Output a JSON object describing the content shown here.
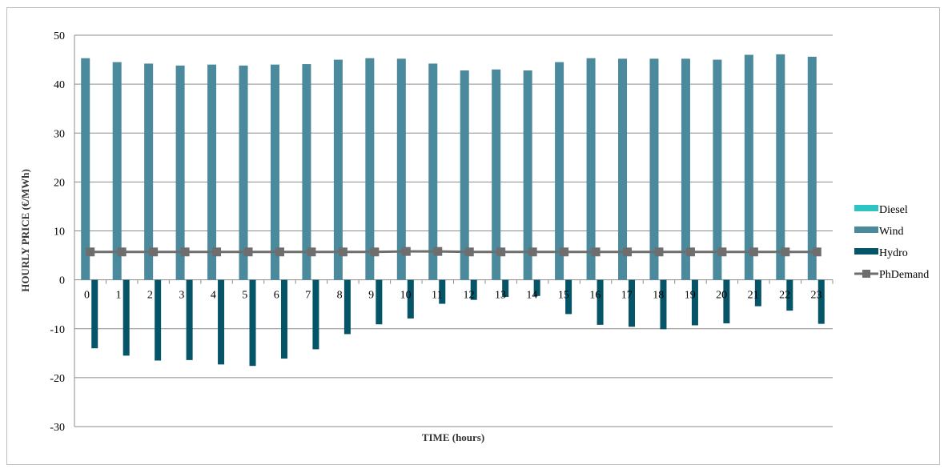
{
  "chart_data": {
    "type": "bar",
    "xlabel": "TIME (hours)",
    "ylabel": "HOURLY PRICE (€/MWh)",
    "ylim": [
      -30,
      50
    ],
    "yticks": [
      50,
      40,
      30,
      20,
      10,
      0,
      -10,
      -20,
      -30
    ],
    "grid": true,
    "legend_position": "right",
    "categories": [
      "0",
      "1",
      "2",
      "3",
      "4",
      "5",
      "6",
      "7",
      "8",
      "9",
      "10",
      "11",
      "12",
      "13",
      "14",
      "15",
      "16",
      "17",
      "18",
      "19",
      "20",
      "21",
      "22",
      "23"
    ],
    "series": [
      {
        "name": "Diesel",
        "kind": "bar",
        "color": "#2ec4c4",
        "values": [
          0,
          0,
          0,
          0,
          0,
          0,
          0,
          0,
          0,
          0,
          0,
          0,
          0,
          0,
          0,
          0,
          0,
          0,
          0,
          0,
          0,
          0,
          0,
          0
        ]
      },
      {
        "name": "Wind",
        "kind": "bar",
        "color": "#4a8a9c",
        "values": [
          45.3,
          44.5,
          44.2,
          43.8,
          44.0,
          43.8,
          44.0,
          44.1,
          45.0,
          45.3,
          45.2,
          44.2,
          42.8,
          43.0,
          42.8,
          44.5,
          45.3,
          45.2,
          45.2,
          45.2,
          45.0,
          46.0,
          46.1,
          45.6
        ]
      },
      {
        "name": "Hydro",
        "kind": "bar",
        "color": "#055468",
        "values": [
          -14.0,
          -15.5,
          -16.5,
          -16.4,
          -17.3,
          -17.6,
          -16.1,
          -14.2,
          -11.1,
          -9.1,
          -7.9,
          -4.9,
          -4.1,
          -3.5,
          -3.3,
          -7.0,
          -9.2,
          -9.6,
          -10.1,
          -9.3,
          -8.9,
          -5.4,
          -6.3,
          -9.0
        ]
      },
      {
        "name": "PhDemand",
        "kind": "line",
        "color": "#6e6e6e",
        "values": [
          5.7,
          5.7,
          5.7,
          5.7,
          5.7,
          5.7,
          5.7,
          5.7,
          5.7,
          5.7,
          5.8,
          5.8,
          5.7,
          5.7,
          5.7,
          5.7,
          5.7,
          5.7,
          5.7,
          5.7,
          5.7,
          5.7,
          5.7,
          5.7
        ]
      }
    ]
  }
}
